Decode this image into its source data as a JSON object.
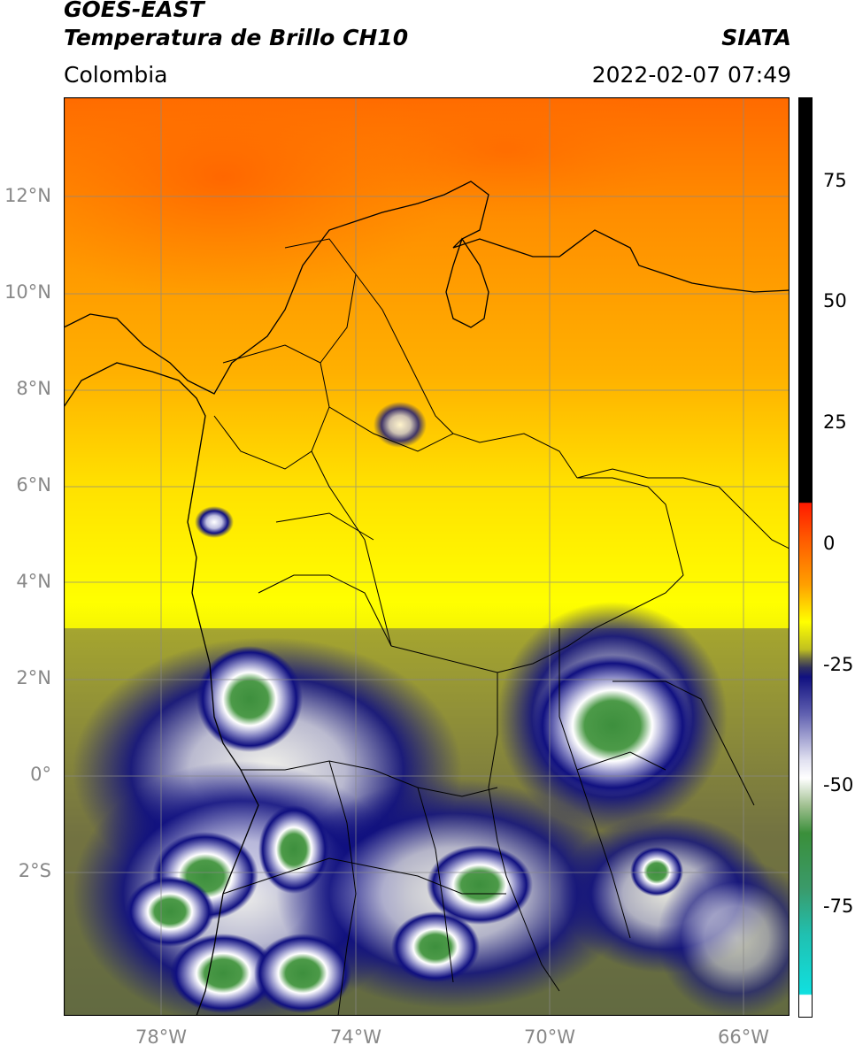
{
  "header": {
    "title_line1": "GOES-EAST",
    "title_line2": "Temperatura de Brillo CH10",
    "region": "Colombia",
    "brand": "SIATA",
    "datetime": "2022-02-07 07:49"
  },
  "map": {
    "lat_ticks": [
      "12°N",
      "10°N",
      "8°N",
      "6°N",
      "4°N",
      "2°N",
      "0°",
      "2°S"
    ],
    "lon_ticks": [
      "78°W",
      "74°W",
      "70°W",
      "66°W"
    ]
  },
  "colorbar": {
    "ticks": [
      "75",
      "50",
      "25",
      "0",
      "-25",
      "-50",
      "-75"
    ],
    "colors": {
      "warm_black": "#000000",
      "red": "#ff2200",
      "orange": "#ff8800",
      "yellow": "#ffff00",
      "olive": "#a0a020",
      "navy": "#101080",
      "white": "#ffffff",
      "green": "#3a8f3a",
      "cyan": "#20e0e0"
    }
  }
}
